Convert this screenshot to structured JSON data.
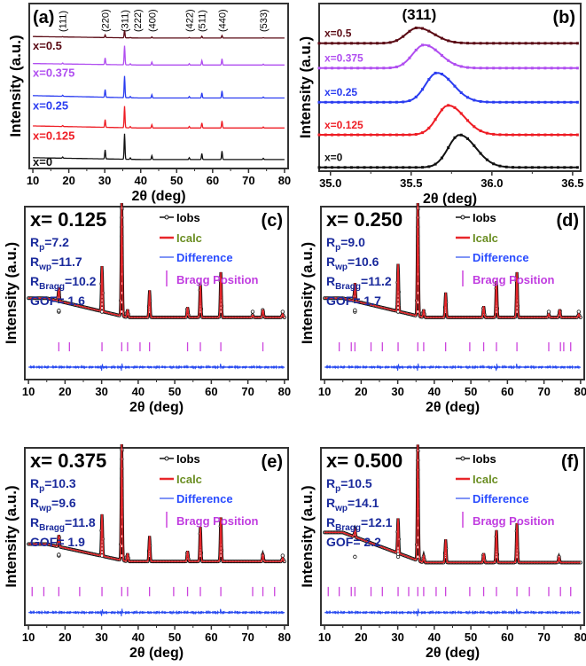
{
  "colors": {
    "x0": "#111111",
    "x0125": "#ee1c24",
    "x025": "#2a3cf0",
    "x0375": "#b04ef0",
    "x05": "#5a0a14",
    "icalc": "#e8262a",
    "diff": "#2a4cf0",
    "bragg": "#cc44dd",
    "stats": "#1a2a9c",
    "icalc_text": "#6b8e23",
    "diff_text": "#2a4cff",
    "bragg_text": "#c03ce0"
  },
  "chart_data": [
    {
      "id": "a",
      "type": "line",
      "panel_label": "(a)",
      "xlabel": "2θ (deg)",
      "ylabel": "Intensity (a.u.)",
      "xlim": [
        9,
        81
      ],
      "ylim": [
        -0.3,
        5.2
      ],
      "xticks": [
        10,
        20,
        30,
        40,
        50,
        60,
        70,
        80
      ],
      "hkl": [
        {
          "x": 18.3,
          "label": "(111)"
        },
        {
          "x": 30.1,
          "label": "(220)"
        },
        {
          "x": 35.5,
          "label": "(311)"
        },
        {
          "x": 37.1,
          "label": "(222)"
        },
        {
          "x": 43.1,
          "label": "(400)"
        },
        {
          "x": 53.5,
          "label": "(422)"
        },
        {
          "x": 57.0,
          "label": "(511)"
        },
        {
          "x": 62.6,
          "label": "(440)"
        },
        {
          "x": 74.1,
          "label": "(533)"
        }
      ],
      "peaks": [
        [
          18.3,
          0.04
        ],
        [
          30.1,
          0.3
        ],
        [
          35.5,
          0.85
        ],
        [
          37.1,
          0.05
        ],
        [
          43.1,
          0.13
        ],
        [
          53.5,
          0.06
        ],
        [
          57.0,
          0.2
        ],
        [
          62.6,
          0.28
        ],
        [
          74.1,
          0.04
        ]
      ],
      "series": [
        {
          "name": "x=0",
          "offset": 0,
          "scale": 1,
          "color": "x0",
          "bg": 0.12
        },
        {
          "name": "x=0.125",
          "offset": 1.05,
          "scale": 0.85,
          "color": "x0125",
          "bg": 0.14
        },
        {
          "name": "x=0.25",
          "offset": 2.05,
          "scale": 0.85,
          "color": "x025",
          "bg": 0.16
        },
        {
          "name": "x=0.375",
          "offset": 3.15,
          "scale": 0.75,
          "color": "x0375",
          "bg": 0.1
        },
        {
          "name": "x=0.5",
          "offset": 4.05,
          "scale": 0.3,
          "color": "x05",
          "bg": 0.1
        }
      ]
    },
    {
      "id": "b",
      "type": "line",
      "panel_label": "(b)",
      "annotation": "(311)",
      "xlabel": "2θ (deg)",
      "ylabel": "Intensity (a.u.)",
      "xlim": [
        34.93,
        36.55
      ],
      "ylim": [
        -0.1,
        5.3
      ],
      "xticks": [
        35.0,
        35.5,
        36.0,
        36.5
      ],
      "series": [
        {
          "name": "x=0",
          "offset": 0,
          "center": 35.8,
          "height": 1.05,
          "color": "x0"
        },
        {
          "name": "x=0.125",
          "offset": 1.05,
          "center": 35.73,
          "height": 0.95,
          "color": "x0125"
        },
        {
          "name": "x=0.25",
          "offset": 2.1,
          "center": 35.66,
          "height": 0.95,
          "color": "x025"
        },
        {
          "name": "x=0.375",
          "offset": 3.2,
          "center": 35.58,
          "height": 0.75,
          "color": "x0375"
        },
        {
          "name": "x=0.5",
          "offset": 4.0,
          "center": 35.54,
          "height": 0.5,
          "color": "x05"
        }
      ]
    },
    {
      "id": "c",
      "type": "line",
      "panel_label": "(c)",
      "title": "x= 0.125",
      "xlabel": "2θ (deg)",
      "ylabel": "Intensity (a.u.)",
      "xlim": [
        9,
        81
      ],
      "ylim": [
        -0.48,
        1.05
      ],
      "xticks": [
        10,
        20,
        30,
        40,
        50,
        60,
        70,
        80
      ],
      "legend": [
        "Iobs",
        "Icalc",
        "Difference",
        "Bragg Position"
      ],
      "stats": [
        {
          "r": "R",
          "sub": "p",
          "value": "=7.2"
        },
        {
          "r": "R",
          "sub": "wp",
          "value": "=11.7"
        },
        {
          "r": "R",
          "sub": "Bragg",
          "value": "=10.2"
        },
        {
          "r": "GOF",
          "sub": "",
          "value": "= 1.6"
        }
      ],
      "background": [
        0.24,
        0.07
      ],
      "peaks": [
        [
          18.3,
          0.12
        ],
        [
          30.1,
          0.4
        ],
        [
          35.5,
          1.0
        ],
        [
          37.1,
          0.07
        ],
        [
          43.1,
          0.24
        ],
        [
          53.5,
          0.09
        ],
        [
          57.0,
          0.3
        ],
        [
          62.6,
          0.4
        ],
        [
          71.3,
          0.02
        ],
        [
          74.1,
          0.07
        ],
        [
          79.5,
          0.03
        ]
      ],
      "bragg": [
        18.3,
        21.2,
        30.1,
        35.5,
        37.1,
        40.5,
        43.1,
        53.5,
        57.0,
        62.6,
        74.1
      ]
    },
    {
      "id": "d",
      "type": "line",
      "panel_label": "(d)",
      "title": "x= 0.250",
      "xlabel": "2θ (deg)",
      "ylabel": "Intensity (a.u.)",
      "xlim": [
        9,
        81
      ],
      "ylim": [
        -0.48,
        1.05
      ],
      "xticks": [
        10,
        20,
        30,
        40,
        50,
        60,
        70,
        80
      ],
      "legend": [
        "Iobs",
        "Icalc",
        "Difference",
        "Bragg Position"
      ],
      "stats": [
        {
          "r": "R",
          "sub": "p",
          "value": "=9.0"
        },
        {
          "r": "R",
          "sub": "wp",
          "value": "=10.6"
        },
        {
          "r": "R",
          "sub": "Bragg",
          "value": "=11.2"
        },
        {
          "r": "GOF",
          "sub": "",
          "value": "= 1.7"
        }
      ],
      "background": [
        0.24,
        0.07
      ],
      "peaks": [
        [
          18.3,
          0.16
        ],
        [
          30.1,
          0.42
        ],
        [
          35.5,
          1.0
        ],
        [
          37.1,
          0.07
        ],
        [
          43.1,
          0.22
        ],
        [
          53.5,
          0.1
        ],
        [
          57.0,
          0.32
        ],
        [
          62.6,
          0.4
        ],
        [
          71.3,
          0.03
        ],
        [
          74.3,
          0.07
        ],
        [
          79.5,
          0.03
        ]
      ],
      "bragg": [
        14.0,
        17.3,
        18.3,
        22.7,
        25.8,
        30.1,
        35.5,
        37.1,
        43.1,
        49.7,
        53.5,
        57.0,
        62.6,
        71.3,
        74.5,
        75.4,
        77.3
      ]
    },
    {
      "id": "e",
      "type": "line",
      "panel_label": "(e)",
      "title": "x= 0.375",
      "xlabel": "2θ (deg)",
      "ylabel": "Intensity (a.u.)",
      "xlim": [
        9,
        81
      ],
      "ylim": [
        -0.48,
        1.05
      ],
      "xticks": [
        10,
        20,
        30,
        40,
        50,
        60,
        70,
        80
      ],
      "legend": [
        "Iobs",
        "Icalc",
        "Difference",
        "Bragg Position"
      ],
      "stats": [
        {
          "r": "R",
          "sub": "p",
          "value": "=10.3"
        },
        {
          "r": "R",
          "sub": "wp",
          "value": "=9.6"
        },
        {
          "r": "R",
          "sub": "Bragg",
          "value": "=11.8"
        },
        {
          "r": "GOF",
          "sub": "",
          "value": "= 1.9"
        }
      ],
      "background": [
        0.22,
        0.07
      ],
      "peaks": [
        [
          18.3,
          0.1
        ],
        [
          30.1,
          0.36
        ],
        [
          35.5,
          1.0
        ],
        [
          37.1,
          0.07
        ],
        [
          43.1,
          0.22
        ],
        [
          53.5,
          0.09
        ],
        [
          57.0,
          0.3
        ],
        [
          62.6,
          0.38
        ],
        [
          74.1,
          0.06
        ],
        [
          79.5,
          0.03
        ]
      ],
      "bragg": [
        11.0,
        14.2,
        18.3,
        24.0,
        30.1,
        35.5,
        37.1,
        43.1,
        49.7,
        53.5,
        57.0,
        62.6,
        71.3,
        74.1,
        77.3
      ]
    },
    {
      "id": "f",
      "type": "line",
      "panel_label": "(f)",
      "title": "x= 0.500",
      "xlabel": "2θ (deg)",
      "ylabel": "Intensity (a.u.)",
      "xlim": [
        9,
        81
      ],
      "ylim": [
        -0.48,
        1.05
      ],
      "xticks": [
        10,
        20,
        30,
        40,
        50,
        60,
        70,
        80
      ],
      "legend": [
        "Iobs",
        "Icalc",
        "Difference",
        "Bragg Position"
      ],
      "stats": [
        {
          "r": "R",
          "sub": "p",
          "value": "=10.5"
        },
        {
          "r": "R",
          "sub": "wp",
          "value": "=14.1"
        },
        {
          "r": "R",
          "sub": "Bragg",
          "value": "=12.1"
        },
        {
          "r": "GOF",
          "sub": "",
          "value": "= 2.2"
        }
      ],
      "background": [
        0.32,
        0.06
      ],
      "peaks": [
        [
          18.3,
          0.06
        ],
        [
          30.1,
          0.3
        ],
        [
          35.5,
          1.0
        ],
        [
          37.1,
          0.06
        ],
        [
          43.1,
          0.2
        ],
        [
          53.5,
          0.08
        ],
        [
          57.0,
          0.28
        ],
        [
          62.6,
          0.34
        ],
        [
          74.1,
          0.05
        ]
      ],
      "bragg": [
        11.0,
        14.0,
        17.3,
        18.3,
        22.7,
        25.8,
        30.1,
        33.0,
        35.5,
        37.1,
        40.5,
        43.1,
        49.7,
        53.5,
        57.0,
        62.6,
        66.0,
        71.3,
        74.5,
        77.3
      ]
    }
  ]
}
